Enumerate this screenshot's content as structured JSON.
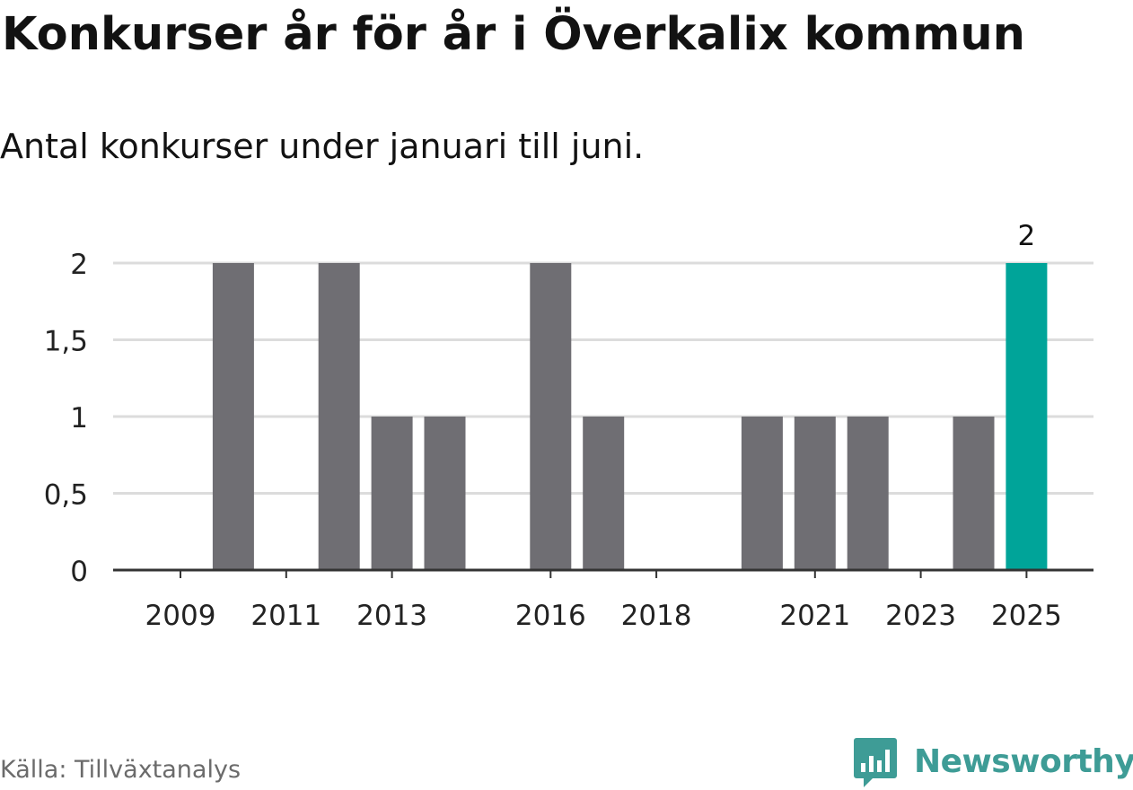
{
  "header": {
    "title": "Konkurser år för år i Överkalix kommun",
    "subtitle": "Antal konkurser under januari till juni."
  },
  "footer": {
    "source": "Källa: Tillväxtanalys",
    "brand": "Newsworthy",
    "brand_color": "#3e9c96"
  },
  "chart_data": {
    "type": "bar",
    "categories": [
      "2009",
      "2010",
      "2011",
      "2012",
      "2013",
      "2014",
      "2015",
      "2016",
      "2017",
      "2018",
      "2019",
      "2020",
      "2021",
      "2022",
      "2023",
      "2024",
      "2025"
    ],
    "values": [
      0,
      2,
      0,
      2,
      1,
      1,
      0,
      2,
      1,
      0,
      0,
      1,
      1,
      1,
      0,
      1,
      2
    ],
    "x_tick_labels": [
      "2009",
      "2011",
      "2013",
      "2016",
      "2018",
      "2021",
      "2023",
      "2025"
    ],
    "y_ticks": [
      0,
      0.5,
      1,
      1.5,
      2
    ],
    "y_tick_labels": [
      "0",
      "0,5",
      "1",
      "1,5",
      "2"
    ],
    "ylim": [
      0,
      2
    ],
    "highlight": {
      "category": "2025",
      "label": "2"
    },
    "colors": {
      "bar": "#6f6e73",
      "highlight": "#00a499",
      "grid": "#dcdcdc",
      "axis": "#333333",
      "tick_text": "#222222"
    },
    "grid": true,
    "legend": "none"
  }
}
